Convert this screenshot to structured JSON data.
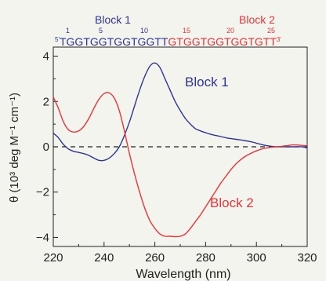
{
  "chart_data": {
    "type": "line",
    "xlabel": "Wavelength (nm)",
    "ylabel": "θ (10³ deg M⁻¹ cm⁻¹)",
    "xlim": [
      220,
      320
    ],
    "ylim": [
      -4.4,
      4.4
    ],
    "xticks": [
      220,
      240,
      260,
      280,
      300,
      320
    ],
    "yticks": [
      -4,
      -2,
      0,
      2,
      4
    ],
    "zero_line": "dashed",
    "grid": false,
    "series": [
      {
        "name": "Block 1",
        "color": "#2e3591",
        "x": [
          220,
          222,
          224,
          226,
          228,
          230,
          232,
          234,
          236,
          238,
          240,
          242,
          244,
          246,
          248,
          250,
          252,
          254,
          256,
          258,
          260,
          262,
          264,
          266,
          268,
          270,
          272,
          274,
          276,
          278,
          280,
          282,
          284,
          286,
          288,
          290,
          292,
          294,
          296,
          298,
          300,
          302,
          304,
          306,
          308,
          310,
          312,
          314,
          316,
          318,
          320
        ],
        "y": [
          0.6,
          0.4,
          0.1,
          -0.1,
          -0.2,
          -0.25,
          -0.3,
          -0.38,
          -0.5,
          -0.6,
          -0.6,
          -0.5,
          -0.3,
          0.0,
          0.5,
          1.1,
          1.8,
          2.5,
          3.1,
          3.55,
          3.7,
          3.5,
          3.0,
          2.5,
          2.0,
          1.6,
          1.25,
          1.0,
          0.8,
          0.7,
          0.62,
          0.55,
          0.5,
          0.45,
          0.4,
          0.36,
          0.33,
          0.3,
          0.26,
          0.22,
          0.16,
          0.1,
          0.05,
          0.02,
          0.0,
          0.0,
          0.0,
          0.0,
          0.0,
          0.0,
          -0.05
        ]
      },
      {
        "name": "Block 2",
        "color": "#e8353a",
        "x": [
          220,
          222,
          224,
          226,
          228,
          230,
          232,
          234,
          236,
          238,
          240,
          242,
          244,
          246,
          248,
          250,
          252,
          254,
          256,
          258,
          260,
          262,
          264,
          266,
          268,
          270,
          272,
          274,
          276,
          278,
          280,
          282,
          284,
          286,
          288,
          290,
          292,
          294,
          296,
          298,
          300,
          302,
          304,
          306,
          308,
          310,
          312,
          314,
          316,
          318,
          320
        ],
        "y": [
          2.2,
          1.7,
          1.1,
          0.75,
          0.65,
          0.7,
          0.9,
          1.25,
          1.7,
          2.1,
          2.35,
          2.38,
          2.15,
          1.6,
          0.7,
          -0.3,
          -1.2,
          -2.0,
          -2.7,
          -3.25,
          -3.6,
          -3.85,
          -3.95,
          -3.95,
          -3.97,
          -3.95,
          -3.85,
          -3.6,
          -3.3,
          -3.0,
          -2.65,
          -2.3,
          -1.95,
          -1.6,
          -1.3,
          -1.0,
          -0.75,
          -0.55,
          -0.4,
          -0.28,
          -0.18,
          -0.1,
          -0.05,
          -0.02,
          0.0,
          0.02,
          0.05,
          0.08,
          0.08,
          0.06,
          0.05
        ]
      }
    ],
    "annotations": [
      {
        "text": "Block 1",
        "series": "Block 1"
      },
      {
        "text": "Block 2",
        "series": "Block 2"
      }
    ],
    "sequence_header": {
      "block1_label": "Block 1",
      "block2_label": "Block 2",
      "prime5": "5'",
      "prime3": "3'",
      "block1_sequence": "TGGTGGTGGTGGTT",
      "block2_sequence": "GTGGTGGTGGTGTT",
      "position_labels": [
        "1",
        "5",
        "10",
        "15",
        "20",
        "25"
      ]
    }
  }
}
